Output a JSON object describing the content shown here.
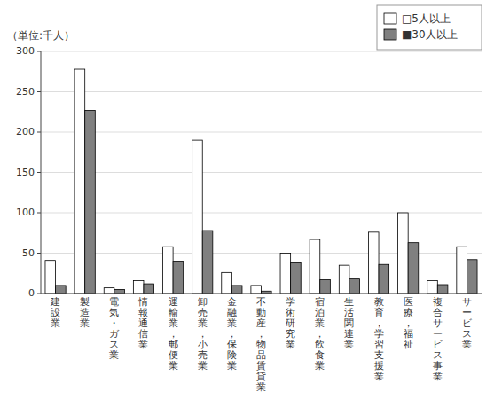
{
  "chart_data": {
    "type": "bar",
    "y_label": "（単位:千人）",
    "categories": [
      "建設業",
      "製造業",
      "電気・ガス業",
      "情報通信業",
      "運輸業，郵便業",
      "卸売業，小売業",
      "金融業，保険業",
      "不動産，物品賃貸業",
      "学術研究業",
      "宿泊業，飲食業",
      "生活関連業",
      "教育，学習支援業",
      "医療，福祉",
      "複合サービス事業",
      "サービス業"
    ],
    "series": [
      {
        "name": "□5人以上",
        "color": "#ffffff",
        "values": [
          41,
          278,
          7,
          16,
          58,
          190,
          26,
          10,
          50,
          67,
          35,
          76,
          100,
          16,
          58
        ]
      },
      {
        "name": "■30人以上",
        "color": "#808080",
        "values": [
          10,
          227,
          5,
          12,
          40,
          78,
          10,
          3,
          38,
          17,
          18,
          36,
          63,
          11,
          42
        ]
      }
    ],
    "ylim": [
      0,
      300
    ],
    "yticks": [
      0,
      50,
      100,
      150,
      200,
      250,
      300
    ],
    "grid": true,
    "legend": "top-right"
  }
}
